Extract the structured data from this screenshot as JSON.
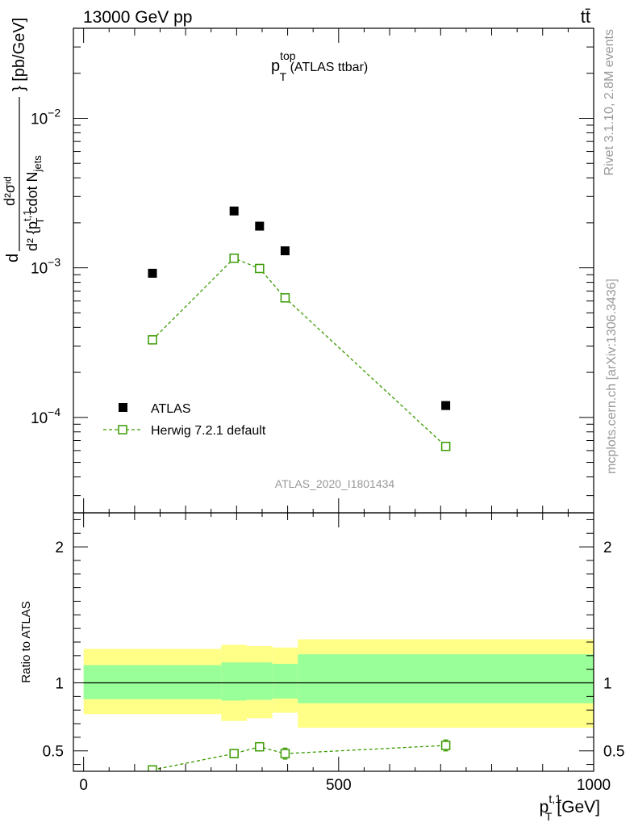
{
  "header": {
    "left": "13000 GeV pp",
    "right": "tt̄"
  },
  "side_text": {
    "rivet": "Rivet 3.1.10,  2.8M events",
    "mcplots": "mcplots.cern.ch [arXiv:1306.3436]"
  },
  "plot_title": {
    "main": "p",
    "sup": "top",
    "sub": "T",
    "suffix": " (ATLAS ttbar)"
  },
  "analysis_id": "ATLAS_2020_I1801434",
  "ylabel_main": {
    "d_outer": "d",
    "num": "d²σᶦᵈ",
    "den": "d² {p",
    "den_sup": "t,1",
    "den_sub": "T",
    "den_rest": " cdot N",
    "den_rest_sub": "jets",
    "units": "} [pb/GeV]"
  },
  "ylabel_ratio": "Ratio to ATLAS",
  "xlabel": {
    "main": "p",
    "sup": "t,1",
    "sub": "T",
    "units": " [GeV]"
  },
  "legend": [
    "ATLAS",
    "Herwig 7.2.1 default"
  ],
  "colors": {
    "data": "#000000",
    "mc": "#3a9a00",
    "band_inner": "#99ff99",
    "band_outer": "#ffff88"
  },
  "chart_data": [
    {
      "type": "scatter",
      "panel": "main",
      "title": "p_T^top (ATLAS ttbar)",
      "xlabel": "p_T^{t,1} [GeV]",
      "ylabel": "d²σ/d²{p_T^{t,1} cdot N_jets} [pb/GeV]",
      "xlim": [
        -20,
        1000
      ],
      "ylim": [
        2.3e-05,
        0.04
      ],
      "yscale": "log",
      "ytick_labels": [
        "10^{-4}",
        "10^{-3}",
        "10^{-2}"
      ],
      "series": [
        {
          "name": "ATLAS",
          "marker": "filled-square",
          "x": [
            135,
            295,
            345,
            395,
            710
          ],
          "y": [
            0.00092,
            0.0024,
            0.0019,
            0.0013,
            0.00012
          ]
        },
        {
          "name": "Herwig 7.2.1 default",
          "marker": "open-square",
          "line": "dashed",
          "x": [
            135,
            295,
            345,
            395,
            710
          ],
          "y": [
            0.00033,
            0.00116,
            0.00099,
            0.00063,
            6.4e-05
          ]
        }
      ]
    },
    {
      "type": "line",
      "panel": "ratio",
      "xlabel": "p_T^{t,1} [GeV]",
      "ylabel": "Ratio to ATLAS",
      "xlim": [
        -20,
        1000
      ],
      "ylim": [
        0.35,
        2.25
      ],
      "yticks": [
        0.5,
        1,
        2
      ],
      "ytick_labels": [
        "0.5",
        "1",
        "2"
      ],
      "xticks": [
        0,
        500,
        1000
      ],
      "xtick_labels": [
        "0",
        "500",
        "1000"
      ],
      "uncertainty_bands": [
        {
          "x0": 0,
          "x1": 270,
          "inner": [
            0.88,
            1.13
          ],
          "outer": [
            0.77,
            1.25
          ]
        },
        {
          "x0": 270,
          "x1": 320,
          "inner": [
            0.87,
            1.15
          ],
          "outer": [
            0.72,
            1.28
          ]
        },
        {
          "x0": 320,
          "x1": 370,
          "inner": [
            0.875,
            1.15
          ],
          "outer": [
            0.74,
            1.27
          ]
        },
        {
          "x0": 370,
          "x1": 420,
          "inner": [
            0.885,
            1.14
          ],
          "outer": [
            0.78,
            1.26
          ]
        },
        {
          "x0": 420,
          "x1": 1000,
          "inner": [
            0.85,
            1.21
          ],
          "outer": [
            0.67,
            1.32
          ]
        }
      ],
      "series": [
        {
          "name": "Herwig 7.2.1 default / ATLAS",
          "x": [
            135,
            295,
            345,
            395,
            710
          ],
          "y": [
            0.36,
            0.48,
            0.53,
            0.48,
            0.54
          ],
          "err": [
            0.03,
            0.03,
            0.03,
            0.04,
            0.04
          ]
        }
      ]
    }
  ]
}
